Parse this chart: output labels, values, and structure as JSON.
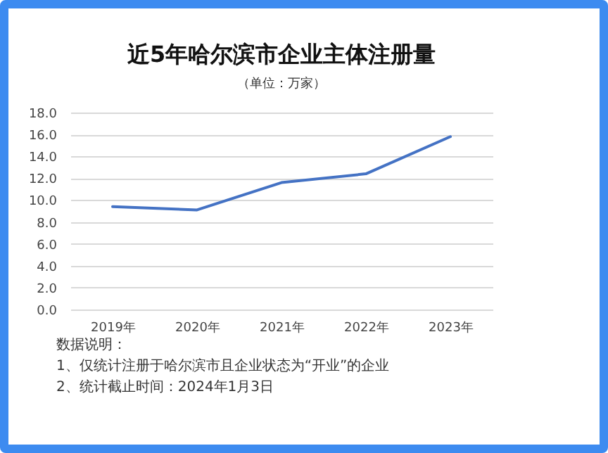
{
  "chart_data": {
    "type": "line",
    "title": "近5年哈尔滨市企业主体注册量",
    "subtitle": "（单位：万家）",
    "categories": [
      "2019年",
      "2020年",
      "2021年",
      "2022年",
      "2023年"
    ],
    "series": [
      {
        "color": "#4472c4",
        "values": [
          9.4,
          9.1,
          11.6,
          12.4,
          15.8
        ]
      }
    ],
    "ylim": [
      0,
      18
    ],
    "yticks": [
      {
        "value": 0,
        "label": "0.0"
      },
      {
        "value": 2,
        "label": "2.0"
      },
      {
        "value": 4,
        "label": "4.0"
      },
      {
        "value": 6,
        "label": "6.0"
      },
      {
        "value": 8,
        "label": "8.0"
      },
      {
        "value": 10,
        "label": "10.0"
      },
      {
        "value": 12,
        "label": "12.0"
      },
      {
        "value": 14,
        "label": "14.0"
      },
      {
        "value": 16,
        "label": "16.0"
      },
      {
        "value": 18,
        "label": "18.0"
      }
    ],
    "grid": "y",
    "marker": "none",
    "line_style": "solid",
    "annotations": [
      "数据说明：",
      "1、仅统计注册于哈尔滨市且企业状态为“开业”的企业",
      "2、统计截止时间：2024年1月3日"
    ]
  }
}
